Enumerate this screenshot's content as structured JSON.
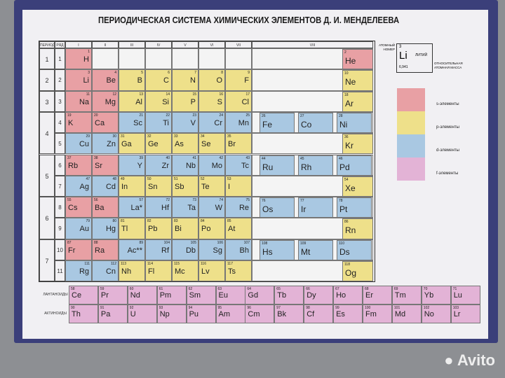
{
  "title": "ПЕРИОДИЧЕСКАЯ СИСТЕМА ХИМИЧЕСКИХ ЭЛЕМЕНТОВ Д. И. МЕНДЕЛЕЕВА",
  "headers": {
    "period": "ПЕРИОД",
    "row": "РЯД",
    "groups": [
      "I",
      "II",
      "III",
      "IV",
      "V",
      "VI",
      "VII",
      "VIII"
    ]
  },
  "colors": {
    "s": "#e8a0a4",
    "p": "#eee08a",
    "d": "#a9c8e2",
    "f": "#e3b3d6"
  },
  "rows": [
    [
      [
        "H",
        1,
        "s"
      ],
      null,
      null,
      null,
      null,
      null,
      null,
      [
        [
          "He",
          2,
          "s"
        ]
      ]
    ],
    [
      [
        "Li",
        3,
        "s"
      ],
      [
        "Be",
        4,
        "s"
      ],
      [
        "B",
        5,
        "p"
      ],
      [
        "C",
        6,
        "p"
      ],
      [
        "N",
        7,
        "p"
      ],
      [
        "O",
        8,
        "p"
      ],
      [
        "F",
        9,
        "p"
      ],
      [
        [
          "Ne",
          10,
          "p"
        ]
      ]
    ],
    [
      [
        "Na",
        11,
        "s"
      ],
      [
        "Mg",
        12,
        "s"
      ],
      [
        "Al",
        13,
        "p"
      ],
      [
        "Si",
        14,
        "p"
      ],
      [
        "P",
        15,
        "p"
      ],
      [
        "S",
        16,
        "p"
      ],
      [
        "Cl",
        17,
        "p"
      ],
      [
        [
          "Ar",
          18,
          "p"
        ]
      ]
    ],
    [
      [
        "K",
        19,
        "s"
      ],
      [
        "Ca",
        20,
        "s"
      ],
      [
        "Sc",
        21,
        "d"
      ],
      [
        "Ti",
        22,
        "d"
      ],
      [
        "V",
        23,
        "d"
      ],
      [
        "Cr",
        24,
        "d"
      ],
      [
        "Mn",
        25,
        "d"
      ],
      [
        [
          "Fe",
          26,
          "d"
        ],
        [
          "Co",
          27,
          "d"
        ],
        [
          "Ni",
          28,
          "d"
        ]
      ]
    ],
    [
      [
        "Cu",
        29,
        "d"
      ],
      [
        "Zn",
        30,
        "d"
      ],
      [
        "Ga",
        31,
        "p"
      ],
      [
        "Ge",
        32,
        "p"
      ],
      [
        "As",
        33,
        "p"
      ],
      [
        "Se",
        34,
        "p"
      ],
      [
        "Br",
        35,
        "p"
      ],
      [
        [
          "Kr",
          36,
          "p"
        ]
      ]
    ],
    [
      [
        "Rb",
        37,
        "s"
      ],
      [
        "Sr",
        38,
        "s"
      ],
      [
        "Y",
        39,
        "d"
      ],
      [
        "Zr",
        40,
        "d"
      ],
      [
        "Nb",
        41,
        "d"
      ],
      [
        "Mo",
        42,
        "d"
      ],
      [
        "Tc",
        43,
        "d"
      ],
      [
        [
          "Ru",
          44,
          "d"
        ],
        [
          "Rh",
          45,
          "d"
        ],
        [
          "Pd",
          46,
          "d"
        ]
      ]
    ],
    [
      [
        "Ag",
        47,
        "d"
      ],
      [
        "Cd",
        48,
        "d"
      ],
      [
        "In",
        49,
        "p"
      ],
      [
        "Sn",
        50,
        "p"
      ],
      [
        "Sb",
        51,
        "p"
      ],
      [
        "Te",
        52,
        "p"
      ],
      [
        "I",
        53,
        "p"
      ],
      [
        [
          "Xe",
          54,
          "p"
        ]
      ]
    ],
    [
      [
        "Cs",
        55,
        "s"
      ],
      [
        "Ba",
        56,
        "s"
      ],
      [
        "La*",
        57,
        "d"
      ],
      [
        "Hf",
        72,
        "d"
      ],
      [
        "Ta",
        73,
        "d"
      ],
      [
        "W",
        74,
        "d"
      ],
      [
        "Re",
        75,
        "d"
      ],
      [
        [
          "Os",
          76,
          "d"
        ],
        [
          "Ir",
          77,
          "d"
        ],
        [
          "Pt",
          78,
          "d"
        ]
      ]
    ],
    [
      [
        "Au",
        79,
        "d"
      ],
      [
        "Hg",
        80,
        "d"
      ],
      [
        "Tl",
        81,
        "p"
      ],
      [
        "Pb",
        82,
        "p"
      ],
      [
        "Bi",
        83,
        "p"
      ],
      [
        "Po",
        84,
        "p"
      ],
      [
        "At",
        85,
        "p"
      ],
      [
        [
          "Rn",
          86,
          "p"
        ]
      ]
    ],
    [
      [
        "Fr",
        87,
        "s"
      ],
      [
        "Ra",
        88,
        "s"
      ],
      [
        "Ac**",
        89,
        "d"
      ],
      [
        "Rf",
        104,
        "d"
      ],
      [
        "Db",
        105,
        "d"
      ],
      [
        "Sg",
        106,
        "d"
      ],
      [
        "Bh",
        107,
        "d"
      ],
      [
        [
          "Hs",
          108,
          "d"
        ],
        [
          "Mt",
          109,
          "d"
        ],
        [
          "Ds",
          110,
          "d"
        ]
      ]
    ],
    [
      [
        "Rg",
        111,
        "d"
      ],
      [
        "Cn",
        112,
        "d"
      ],
      [
        "Nh",
        113,
        "p"
      ],
      [
        "Fl",
        114,
        "p"
      ],
      [
        "Mc",
        115,
        "p"
      ],
      [
        "Lv",
        116,
        "p"
      ],
      [
        "Ts",
        117,
        "p"
      ],
      [
        [
          "Og",
          118,
          "p"
        ]
      ]
    ]
  ],
  "periods": [
    "1",
    "2",
    "3",
    "4",
    "5",
    "6",
    "7"
  ],
  "lanthanides": {
    "label": "ЛАНТАНОИДЫ",
    "elements": [
      [
        "Ce",
        58
      ],
      [
        "Pr",
        59
      ],
      [
        "Nd",
        60
      ],
      [
        "Pm",
        61
      ],
      [
        "Sm",
        62
      ],
      [
        "Eu",
        63
      ],
      [
        "Gd",
        64
      ],
      [
        "Tb",
        65
      ],
      [
        "Dy",
        66
      ],
      [
        "Ho",
        67
      ],
      [
        "Er",
        68
      ],
      [
        "Tm",
        69
      ],
      [
        "Yb",
        70
      ],
      [
        "Lu",
        71
      ]
    ]
  },
  "actinides": {
    "label": "АКТИНОИДЫ",
    "elements": [
      [
        "Th",
        90
      ],
      [
        "Pa",
        91
      ],
      [
        "U",
        92
      ],
      [
        "Np",
        93
      ],
      [
        "Pu",
        94
      ],
      [
        "Am",
        95
      ],
      [
        "Cm",
        96
      ],
      [
        "Bk",
        97
      ],
      [
        "Cf",
        98
      ],
      [
        "Es",
        99
      ],
      [
        "Fm",
        100
      ],
      [
        "Md",
        101
      ],
      [
        "No",
        102
      ],
      [
        "Lr",
        103
      ]
    ]
  },
  "key": {
    "number": "3",
    "symbol": "Li",
    "name": "ЛИТИЙ",
    "mass": "6,941",
    "number_label": "АТОМНЫЙ НОМЕР",
    "mass_label": "ОТНОСИТЕЛЬНАЯ АТОМНАЯ МАССА"
  },
  "legend": [
    "s-элементы",
    "p-элементы",
    "d-элементы",
    "f-элементы"
  ],
  "watermark": "Avito"
}
